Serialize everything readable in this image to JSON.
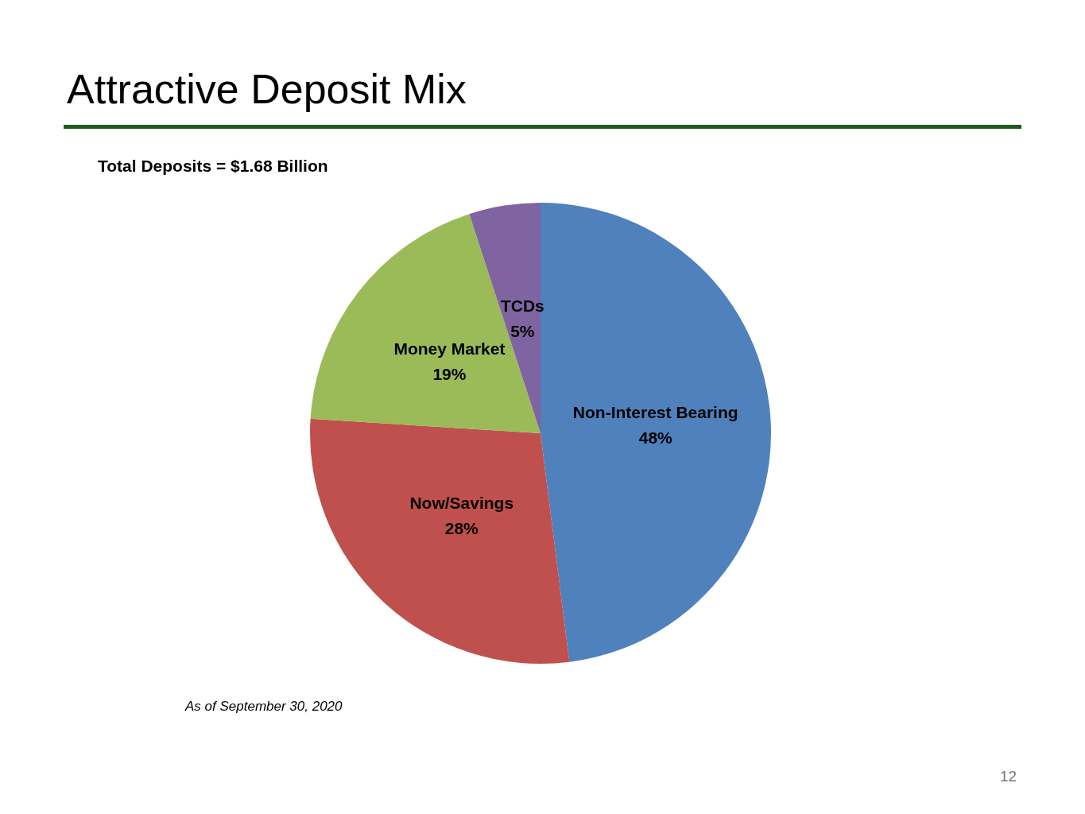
{
  "chart_data": {
    "type": "pie",
    "title": "Attractive Deposit Mix",
    "subtitle": "Total Deposits = $1.68 Billion",
    "categories": [
      "Non-Interest Bearing",
      "Now/Savings",
      "Money Market",
      "TCDs"
    ],
    "values": [
      48,
      28,
      19,
      5
    ],
    "colors": [
      "#4f81bd",
      "#c0504d",
      "#9bbb59",
      "#8064a2"
    ],
    "value_labels": [
      "48%",
      "28%",
      "19%",
      "5%"
    ],
    "legend": false,
    "annotations": [
      "As of  September 30, 2020",
      "12"
    ]
  }
}
